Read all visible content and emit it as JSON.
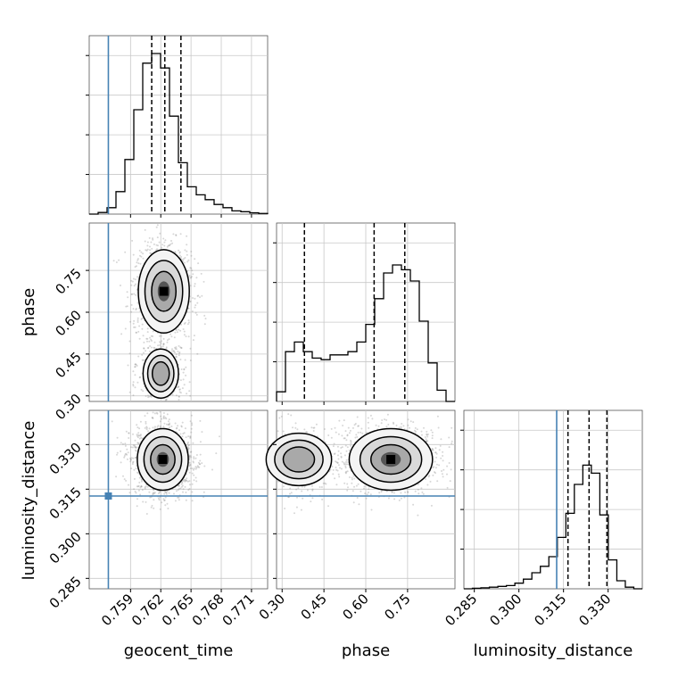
{
  "chart_data": {
    "type": "corner",
    "parameters": [
      "geocent_time",
      "phase",
      "luminosity_distance"
    ],
    "truths": {
      "geocent_time": 0.7568,
      "phase": null,
      "luminosity_distance": 0.3127
    },
    "truth_color": "#4682b4",
    "quantile_lines": {
      "geocent_time": [
        0.7611,
        0.7624,
        0.764
      ],
      "phase": [
        0.38,
        0.63,
        0.74
      ],
      "luminosity_distance": [
        0.3165,
        0.3236,
        0.3296
      ]
    },
    "axes": {
      "geocent_time": {
        "range": [
          0.7549,
          0.7726
        ],
        "ticks": [
          0.759,
          0.762,
          0.765,
          0.768,
          0.771
        ],
        "tick_labels": [
          "0.759",
          "0.762",
          "0.765",
          "0.768",
          "0.771"
        ]
      },
      "phase": {
        "range": [
          0.28,
          0.92
        ],
        "ticks": [
          0.3,
          0.45,
          0.6,
          0.75
        ],
        "tick_labels": [
          "0.30",
          "0.45",
          "0.60",
          "0.75"
        ]
      },
      "luminosity_distance": {
        "range": [
          0.2815,
          0.3415
        ],
        "ticks": [
          0.285,
          0.3,
          0.315,
          0.33
        ],
        "tick_labels": [
          "0.285",
          "0.300",
          "0.315",
          "0.330"
        ]
      }
    },
    "histograms": {
      "geocent_time": [
        0,
        0.01,
        0.04,
        0.14,
        0.34,
        0.65,
        0.94,
        1.0,
        0.91,
        0.61,
        0.32,
        0.17,
        0.12,
        0.09,
        0.06,
        0.04,
        0.02,
        0.015,
        0.008,
        0.004
      ],
      "phase": [
        0.06,
        0.31,
        0.37,
        0.31,
        0.27,
        0.26,
        0.29,
        0.29,
        0.31,
        0.37,
        0.48,
        0.64,
        0.8,
        0.85,
        0.82,
        0.75,
        0.5,
        0.24,
        0.07,
        0.0
      ],
      "luminosity_distance": [
        0,
        0.003,
        0.006,
        0.01,
        0.015,
        0.02,
        0.035,
        0.06,
        0.1,
        0.14,
        0.2,
        0.32,
        0.47,
        0.65,
        0.77,
        0.72,
        0.46,
        0.18,
        0.05,
        0.01,
        0
      ]
    },
    "pairs": [
      {
        "x": "geocent_time",
        "y": "phase",
        "mode_regions": [
          {
            "cx": 0.7623,
            "cy": 0.675,
            "sx": 0.0011,
            "sy": 0.065,
            "w": 0.8
          },
          {
            "cx": 0.762,
            "cy": 0.38,
            "sx": 0.0009,
            "sy": 0.045,
            "w": 0.35
          }
        ]
      },
      {
        "x": "geocent_time",
        "y": "luminosity_distance",
        "mode_regions": [
          {
            "cx": 0.7622,
            "cy": 0.325,
            "sx": 0.0011,
            "sy": 0.0045,
            "w": 1.0
          }
        ]
      },
      {
        "x": "phase",
        "y": "luminosity_distance",
        "mode_regions": [
          {
            "cx": 0.69,
            "cy": 0.325,
            "sx": 0.065,
            "sy": 0.0045,
            "w": 0.75
          },
          {
            "cx": 0.36,
            "cy": 0.325,
            "sx": 0.06,
            "sy": 0.0045,
            "w": 0.35
          }
        ]
      }
    ]
  }
}
